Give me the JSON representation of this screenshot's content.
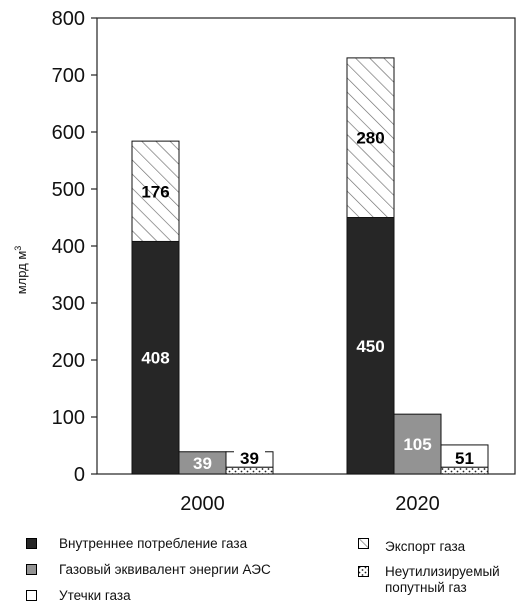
{
  "chart_data": {
    "type": "bar",
    "stacked": true,
    "ylabel": "млрд м",
    "ylabel_superscript": "3",
    "ylim": [
      0,
      800
    ],
    "yticks": [
      "0",
      "100",
      "200",
      "300",
      "400",
      "500",
      "600",
      "700",
      "800"
    ],
    "grid": false,
    "categories": [
      "2000",
      "2020"
    ],
    "series": [
      {
        "name": "Внутреннее потребление газа",
        "group": "stack",
        "values": [
          408,
          450
        ],
        "labels": [
          "408",
          "450"
        ],
        "color": "#262626",
        "pattern": "solid",
        "label_color": "#ffffff"
      },
      {
        "name": "Экспорт газа",
        "group": "stack",
        "values": [
          176,
          280
        ],
        "labels": [
          "176",
          "280"
        ],
        "color": "#ffffff",
        "pattern": "hatch",
        "label_color": "#000000"
      },
      {
        "name": "Газовый эквивалент энергии АЭС",
        "group": "aes",
        "values": [
          39,
          105
        ],
        "labels": [
          "39",
          "105"
        ],
        "color": "#939393",
        "pattern": "solid",
        "label_color": "#ffffff"
      },
      {
        "name": "Неутилизируемый\nпопутный газ",
        "group": "other",
        "values": [
          12,
          12
        ],
        "labels": [
          "",
          ""
        ],
        "color": "#ffffff",
        "pattern": "dots",
        "label_color": "#000000"
      },
      {
        "name": "Утечки газа",
        "group": "other",
        "values": [
          27,
          39
        ],
        "labels": [
          "39",
          "51"
        ],
        "color": "#ffffff",
        "pattern": "solid",
        "label_color": "#000000"
      }
    ],
    "legend_position": "bottom"
  }
}
